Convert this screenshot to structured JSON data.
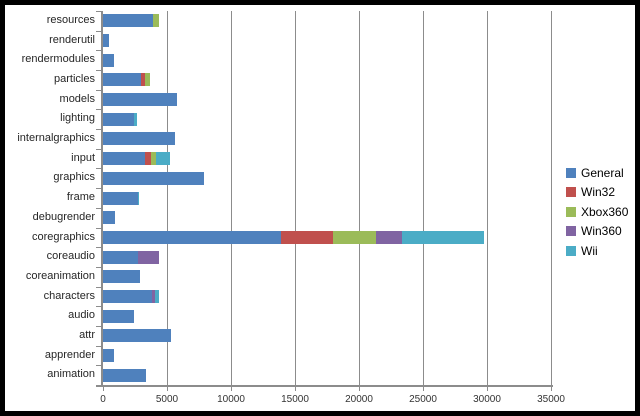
{
  "window": {
    "background": "#FFFFFF",
    "frame_border_color": "#000000"
  },
  "colors": {
    "axis": "#8C8C8C",
    "grid": "#8C8C8C",
    "category_text": "#262626",
    "tick_text": "#333333",
    "legend_text": "#000000"
  },
  "chart_data": {
    "type": "bar",
    "orientation": "horizontal",
    "stacked": true,
    "title": "",
    "grid": true,
    "categories": [
      "resources",
      "renderutil",
      "rendermodules",
      "particles",
      "models",
      "lighting",
      "internalgraphics",
      "input",
      "graphics",
      "frame",
      "debugrender",
      "coregraphics",
      "coreaudio",
      "coreanimation",
      "characters",
      "audio",
      "attr",
      "apprender",
      "animation"
    ],
    "series": [
      {
        "name": "General",
        "color": "#4F81BD",
        "values": [
          3900,
          500,
          850,
          2950,
          5800,
          2400,
          5600,
          3300,
          7900,
          2750,
          950,
          13900,
          2700,
          2900,
          3850,
          2450,
          5300,
          850,
          3350
        ]
      },
      {
        "name": "Win32",
        "color": "#C0504D",
        "values": [
          0,
          0,
          0,
          300,
          0,
          0,
          0,
          450,
          0,
          0,
          0,
          4100,
          0,
          0,
          0,
          0,
          0,
          0,
          0
        ]
      },
      {
        "name": "Xbox360",
        "color": "#9BBB59",
        "values": [
          450,
          0,
          0,
          400,
          0,
          0,
          0,
          400,
          0,
          0,
          0,
          3350,
          0,
          0,
          0,
          0,
          0,
          0,
          0
        ]
      },
      {
        "name": "Win360",
        "color": "#8064A2",
        "values": [
          0,
          0,
          0,
          0,
          0,
          0,
          0,
          0,
          0,
          0,
          0,
          2050,
          1650,
          0,
          200,
          0,
          0,
          0,
          0
        ]
      },
      {
        "name": "Wii",
        "color": "#4BACC6",
        "values": [
          0,
          0,
          0,
          0,
          0,
          250,
          0,
          1100,
          0,
          100,
          0,
          6350,
          0,
          0,
          350,
          0,
          0,
          0,
          0
        ]
      }
    ],
    "x_axis": {
      "min": 0,
      "max": 35000,
      "tick_interval": 5000,
      "tick_labels": [
        "0",
        "5000",
        "10000",
        "15000",
        "20000",
        "25000",
        "30000",
        "35000"
      ]
    },
    "legend": {
      "position": "right",
      "entries": [
        "General",
        "Win32",
        "Xbox360",
        "Win360",
        "Wii"
      ]
    }
  }
}
